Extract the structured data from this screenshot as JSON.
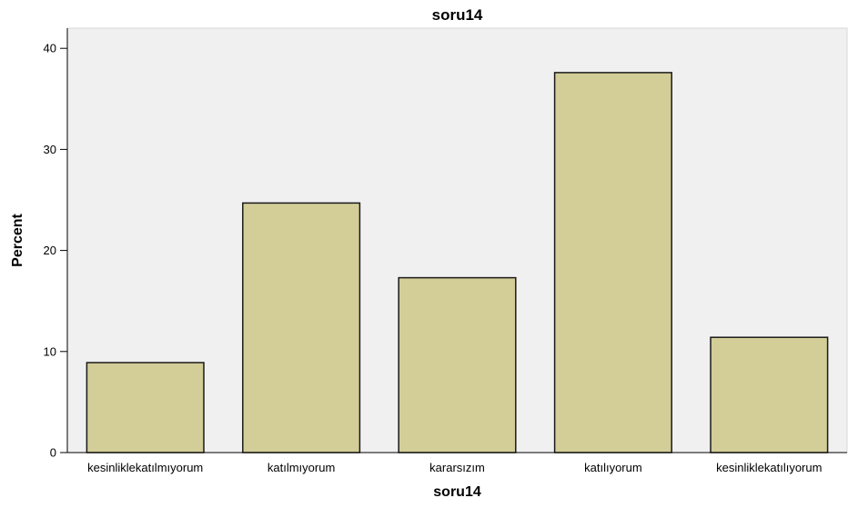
{
  "chart_data": {
    "type": "bar",
    "title": "soru14",
    "xlabel": "soru14",
    "ylabel": "Percent",
    "categories": [
      "kesinliklekatılmıyorum",
      "katılmıyorum",
      "kararsızım",
      "katılıyorum",
      "kesinliklekatılıyorum"
    ],
    "values": [
      8.9,
      24.7,
      17.3,
      37.6,
      11.4
    ],
    "ylim": [
      0,
      42
    ],
    "yticks": [
      0,
      10,
      20,
      30,
      40
    ],
    "grid": false,
    "legend": "none",
    "colors": {
      "bar_fill": "#d3cd98",
      "bar_stroke": "#1a1a1a",
      "plot_background": "#f0f0f0",
      "axis": "#000000"
    }
  }
}
